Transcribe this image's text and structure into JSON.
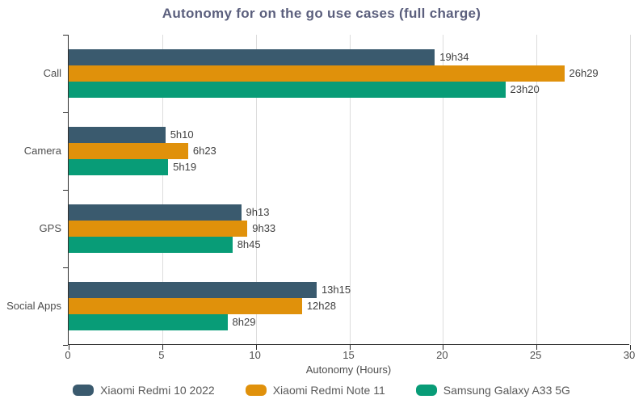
{
  "title": "Autonomy for on the go use cases (full charge)",
  "axis": {
    "xlabel": "Autonomy (Hours)",
    "xticks": [
      0,
      5,
      10,
      15,
      20,
      25,
      30
    ],
    "xlim": [
      0,
      30
    ]
  },
  "colors": {
    "series_1": "#3a5a6e",
    "series_2": "#e0910b",
    "series_3": "#089c77",
    "title_text": "#5b5f7d",
    "gridline": "#dcdcdc",
    "axis_line": "#2e2e2e",
    "bar_label_text": "#3f3f3f",
    "tick_text": "#4d4d4d",
    "legend_text": "#595959"
  },
  "chart_data": {
    "type": "bar",
    "orientation": "horizontal",
    "title": "Autonomy for on the go use cases (full charge)",
    "xlabel": "Autonomy (Hours)",
    "ylabel": "",
    "xlim": [
      0,
      30
    ],
    "grid": true,
    "legend_position": "bottom",
    "categories": [
      "Call",
      "Camera",
      "GPS",
      "Social Apps"
    ],
    "series": [
      {
        "name": "Xiaomi Redmi 10 2022",
        "color": "#3a5a6e",
        "labels": [
          "19h34",
          "5h10",
          "9h13",
          "13h15"
        ],
        "values_hours": [
          19.567,
          5.167,
          9.217,
          13.25
        ]
      },
      {
        "name": "Xiaomi Redmi Note 11",
        "color": "#e0910b",
        "labels": [
          "26h29",
          "6h23",
          "9h33",
          "12h28"
        ],
        "values_hours": [
          26.483,
          6.383,
          9.55,
          12.467
        ]
      },
      {
        "name": "Samsung Galaxy A33 5G",
        "color": "#089c77",
        "labels": [
          "23h20",
          "5h19",
          "8h45",
          "8h29"
        ],
        "values_hours": [
          23.333,
          5.317,
          8.75,
          8.483
        ]
      }
    ]
  }
}
